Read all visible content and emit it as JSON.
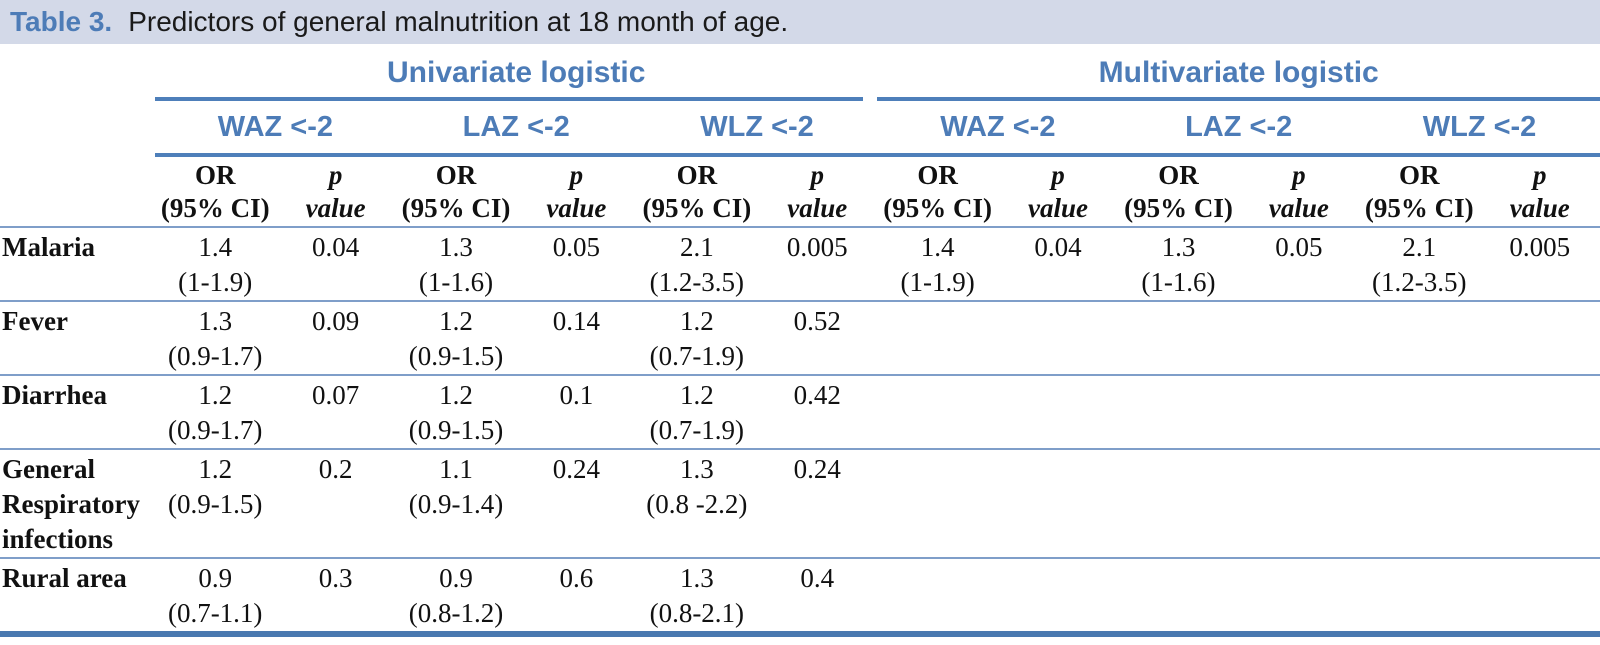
{
  "title": {
    "label": "Table 3.",
    "text": "Predictors of general malnutrition at 18 month of age."
  },
  "colors": {
    "title_bar_bg": "#d3d9e8",
    "accent_blue_text": "#4d7cb7",
    "rule_blue": "#4e7fba",
    "separator_blue": "#7f9ec9",
    "bottom_rule_blue": "#4a79b0"
  },
  "table": {
    "group_headers": [
      {
        "label": "Univariate logistic"
      },
      {
        "label": "Multivariate logistic"
      }
    ],
    "outcome_headers": [
      {
        "label": "WAZ <-2"
      },
      {
        "label": "LAZ <-2"
      },
      {
        "label": "WLZ <-2"
      },
      {
        "label": "WAZ <-2"
      },
      {
        "label": "LAZ <-2"
      },
      {
        "label": "WLZ <-2"
      }
    ],
    "measure_header": {
      "or_line1": "OR",
      "or_line2": "(95% CI)",
      "p_line1": "p",
      "p_line2": "value"
    },
    "rows": [
      {
        "label": "Malaria",
        "cells": [
          {
            "or": "1.4",
            "ci": "(1-1.9)",
            "p": "0.04"
          },
          {
            "or": "1.3",
            "ci": "(1-1.6)",
            "p": "0.05"
          },
          {
            "or": "2.1",
            "ci": "(1.2-3.5)",
            "p": "0.005"
          },
          {
            "or": "1.4",
            "ci": "(1-1.9)",
            "p": "0.04"
          },
          {
            "or": "1.3",
            "ci": "(1-1.6)",
            "p": "0.05"
          },
          {
            "or": "2.1",
            "ci": "(1.2-3.5)",
            "p": "0.005"
          }
        ]
      },
      {
        "label": "Fever",
        "cells": [
          {
            "or": "1.3",
            "ci": "(0.9-1.7)",
            "p": "0.09"
          },
          {
            "or": "1.2",
            "ci": "(0.9-1.5)",
            "p": "0.14"
          },
          {
            "or": "1.2",
            "ci": "(0.7-1.9)",
            "p": "0.52"
          },
          {
            "or": "",
            "ci": "",
            "p": ""
          },
          {
            "or": "",
            "ci": "",
            "p": ""
          },
          {
            "or": "",
            "ci": "",
            "p": ""
          }
        ]
      },
      {
        "label": "Diarrhea",
        "cells": [
          {
            "or": "1.2",
            "ci": "(0.9-1.7)",
            "p": "0.07"
          },
          {
            "or": "1.2",
            "ci": "(0.9-1.5)",
            "p": "0.1"
          },
          {
            "or": "1.2",
            "ci": "(0.7-1.9)",
            "p": "0.42"
          },
          {
            "or": "",
            "ci": "",
            "p": ""
          },
          {
            "or": "",
            "ci": "",
            "p": ""
          },
          {
            "or": "",
            "ci": "",
            "p": ""
          }
        ]
      },
      {
        "label": "General Respiratory infections",
        "cells": [
          {
            "or": "1.2",
            "ci": "(0.9-1.5)",
            "p": "0.2"
          },
          {
            "or": "1.1",
            "ci": "(0.9-1.4)",
            "p": "0.24"
          },
          {
            "or": "1.3",
            "ci": "(0.8 -2.2)",
            "p": "0.24"
          },
          {
            "or": "",
            "ci": "",
            "p": ""
          },
          {
            "or": "",
            "ci": "",
            "p": ""
          },
          {
            "or": "",
            "ci": "",
            "p": ""
          }
        ]
      },
      {
        "label": "Rural area",
        "cells": [
          {
            "or": "0.9",
            "ci": "(0.7-1.1)",
            "p": "0.3"
          },
          {
            "or": "0.9",
            "ci": "(0.8-1.2)",
            "p": "0.6"
          },
          {
            "or": "1.3",
            "ci": "(0.8-2.1)",
            "p": "0.4"
          },
          {
            "or": "",
            "ci": "",
            "p": ""
          },
          {
            "or": "",
            "ci": "",
            "p": ""
          },
          {
            "or": "",
            "ci": "",
            "p": ""
          }
        ]
      }
    ]
  }
}
